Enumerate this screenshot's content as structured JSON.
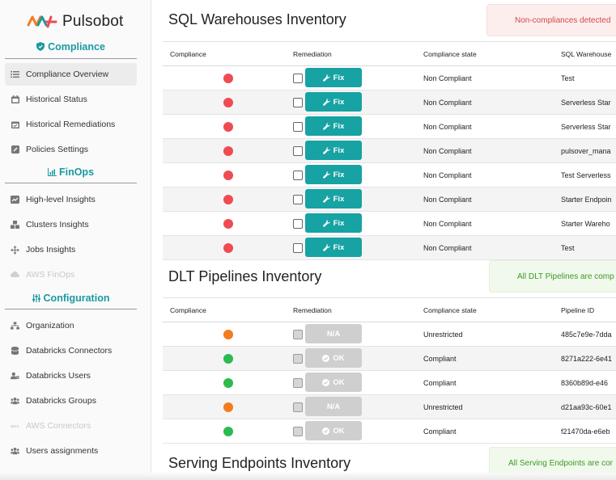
{
  "brand": {
    "name": "Pulsobot"
  },
  "sidebar": {
    "compliance_title": "Compliance",
    "compliance_items": [
      {
        "label": "Compliance Overview",
        "icon": "list-icon",
        "active": true
      },
      {
        "label": "Historical Status",
        "icon": "calendar-icon"
      },
      {
        "label": "Historical Remediations",
        "icon": "calendar-check-icon"
      },
      {
        "label": "Policies Settings",
        "icon": "pencil-icon"
      }
    ],
    "finops_title": "FinOps",
    "finops_items": [
      {
        "label": "High-level Insights",
        "icon": "chart-icon"
      },
      {
        "label": "Clusters Insights",
        "icon": "cubes-icon"
      },
      {
        "label": "Jobs Insights",
        "icon": "arrows-icon"
      },
      {
        "label": "AWS FinOps",
        "icon": "aws-icon",
        "disabled": true
      }
    ],
    "config_title": "Configuration",
    "config_items": [
      {
        "label": "Organization",
        "icon": "sitemap-icon"
      },
      {
        "label": "Databricks Connectors",
        "icon": "database-icon"
      },
      {
        "label": "Databricks Users",
        "icon": "user-gear-icon"
      },
      {
        "label": "Databricks Groups",
        "icon": "users-icon"
      },
      {
        "label": "AWS Connectors",
        "icon": "aws-icon",
        "disabled": true
      },
      {
        "label": "Users assignments",
        "icon": "users-icon"
      }
    ]
  },
  "sql": {
    "title": "SQL Warehouses Inventory",
    "alert": "Non-compliances detected",
    "headers": [
      "Compliance",
      "Remediation",
      "Compliance state",
      "SQL Warehouse"
    ],
    "rows": [
      {
        "status": "red",
        "button": "Fix",
        "state": "Non Compliant",
        "name": "Test"
      },
      {
        "status": "red",
        "button": "Fix",
        "state": "Non Compliant",
        "name": "Serverless Star"
      },
      {
        "status": "red",
        "button": "Fix",
        "state": "Non Compliant",
        "name": "Serverless Star"
      },
      {
        "status": "red",
        "button": "Fix",
        "state": "Non Compliant",
        "name": "pulsover_mana"
      },
      {
        "status": "red",
        "button": "Fix",
        "state": "Non Compliant",
        "name": "Test Serverless"
      },
      {
        "status": "red",
        "button": "Fix",
        "state": "Non Compliant",
        "name": "Starter Endpoin"
      },
      {
        "status": "red",
        "button": "Fix",
        "state": "Non Compliant",
        "name": "Starter Wareho"
      },
      {
        "status": "red",
        "button": "Fix",
        "state": "Non Compliant",
        "name": "Test"
      }
    ]
  },
  "dlt": {
    "title": "DLT Pipelines Inventory",
    "alert": "All DLT Pipelines are comp",
    "headers": [
      "Compliance",
      "Remediation",
      "Compliance state",
      "Pipeline ID"
    ],
    "rows": [
      {
        "status": "orange",
        "button": "N/A",
        "state": "Unrestricted",
        "name": "485c7e9e-7dda"
      },
      {
        "status": "green",
        "button": "OK",
        "state": "Compliant",
        "name": "8271a222-6e41"
      },
      {
        "status": "green",
        "button": "OK",
        "state": "Compliant",
        "name": "8360b89d-e46"
      },
      {
        "status": "orange",
        "button": "N/A",
        "state": "Unrestricted",
        "name": "d21aa93c-60e1"
      },
      {
        "status": "green",
        "button": "OK",
        "state": "Compliant",
        "name": "f21470da-e6eb"
      }
    ]
  },
  "serving": {
    "title": "Serving Endpoints Inventory",
    "alert": "All Serving Endpoints are cor"
  },
  "colors": {
    "accent": "#17a2a3",
    "red": "#ef4b52",
    "orange": "#f47b1e",
    "green": "#2dba4f"
  }
}
